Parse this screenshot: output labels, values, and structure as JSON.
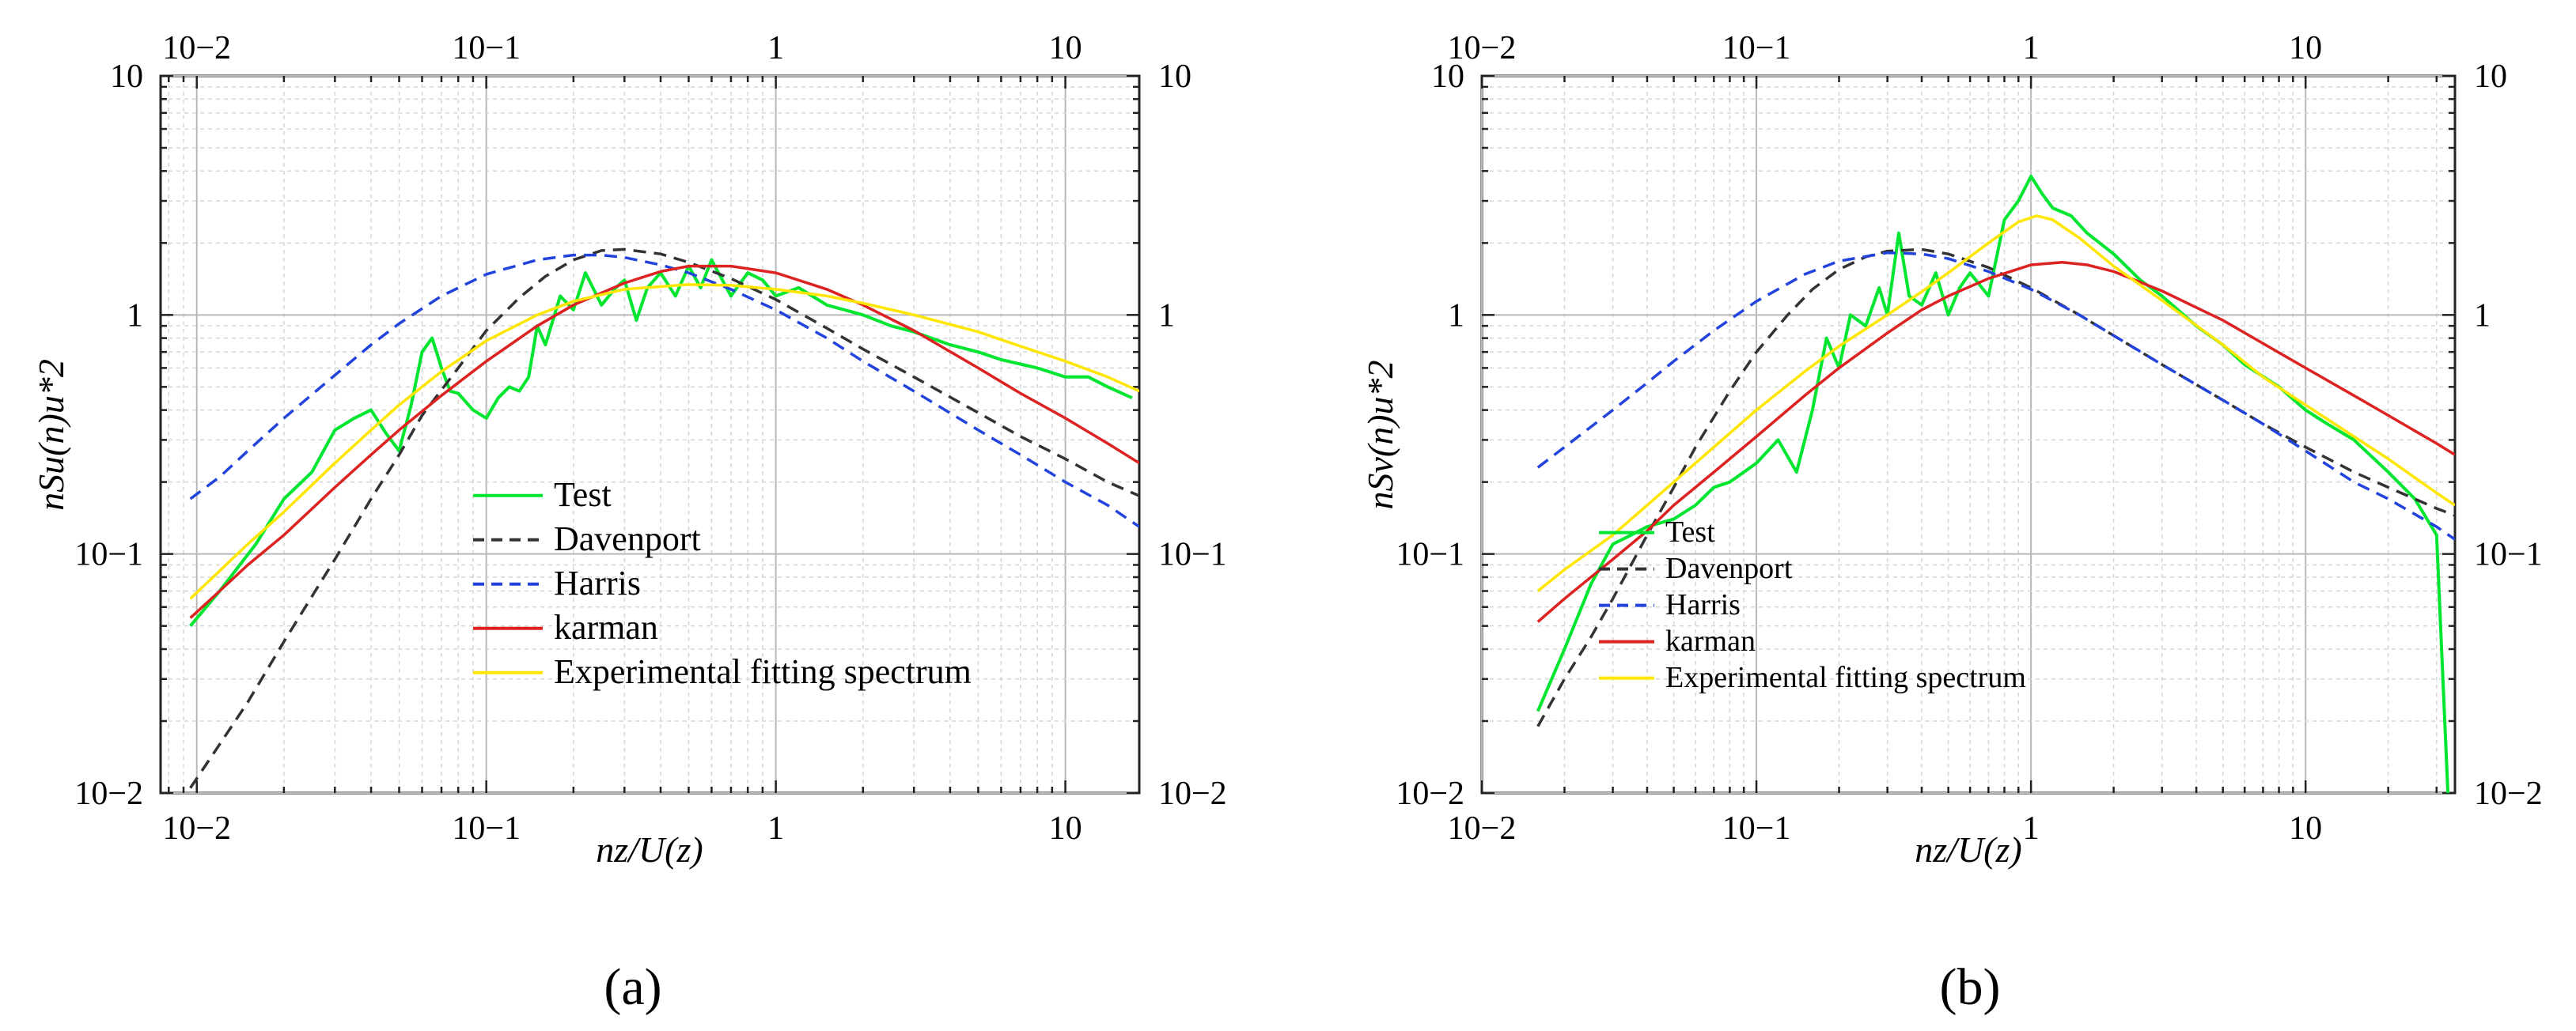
{
  "chart_data": [
    {
      "type": "line",
      "panel_label": "(a)",
      "xlabel": "nz/U(z)",
      "ylabel": "nSu(n)u*2",
      "xscale": "log",
      "yscale": "log",
      "xlim": [
        0.0075,
        18
      ],
      "ylim": [
        0.01,
        10
      ],
      "grid": true,
      "legend_position": "lower-right",
      "x_tick_labels": [
        "10−2",
        "10−1",
        "1",
        "10"
      ],
      "y_tick_labels": [
        "10−2",
        "10−1",
        "1",
        "10"
      ],
      "series": [
        {
          "name": "Test",
          "color": "#00e630",
          "style": "solid",
          "x": [
            0.0095,
            0.012,
            0.016,
            0.02,
            0.025,
            0.03,
            0.035,
            0.04,
            0.045,
            0.05,
            0.055,
            0.06,
            0.065,
            0.07,
            0.075,
            0.08,
            0.09,
            0.1,
            0.11,
            0.12,
            0.13,
            0.14,
            0.15,
            0.16,
            0.18,
            0.2,
            0.22,
            0.25,
            0.28,
            0.3,
            0.33,
            0.36,
            0.4,
            0.45,
            0.5,
            0.55,
            0.6,
            0.7,
            0.8,
            0.9,
            1.0,
            1.2,
            1.5,
            2.0,
            2.5,
            3.0,
            4.0,
            5.0,
            6.0,
            8.0,
            10.0,
            12.0,
            14.0,
            17.0
          ],
          "y": [
            0.05,
            0.07,
            0.11,
            0.17,
            0.22,
            0.33,
            0.37,
            0.4,
            0.32,
            0.27,
            0.42,
            0.7,
            0.8,
            0.6,
            0.48,
            0.47,
            0.4,
            0.37,
            0.45,
            0.5,
            0.48,
            0.55,
            0.9,
            0.75,
            1.2,
            1.05,
            1.5,
            1.1,
            1.3,
            1.4,
            0.95,
            1.3,
            1.5,
            1.2,
            1.6,
            1.3,
            1.7,
            1.2,
            1.5,
            1.4,
            1.2,
            1.3,
            1.1,
            1.0,
            0.9,
            0.85,
            0.75,
            0.7,
            0.65,
            0.6,
            0.55,
            0.55,
            0.5,
            0.45
          ]
        },
        {
          "name": "Davenport",
          "color": "#333333",
          "style": "dashed",
          "x": [
            0.0095,
            0.012,
            0.015,
            0.02,
            0.03,
            0.04,
            0.05,
            0.06,
            0.08,
            0.1,
            0.13,
            0.16,
            0.2,
            0.25,
            0.3,
            0.4,
            0.5,
            0.7,
            1.0,
            1.5,
            2.0,
            3.0,
            5.0,
            7.0,
            10.0,
            14.0,
            18.0
          ],
          "y": [
            0.0105,
            0.016,
            0.024,
            0.043,
            0.095,
            0.17,
            0.26,
            0.38,
            0.6,
            0.86,
            1.18,
            1.45,
            1.7,
            1.86,
            1.88,
            1.8,
            1.66,
            1.42,
            1.16,
            0.88,
            0.72,
            0.55,
            0.39,
            0.31,
            0.25,
            0.2,
            0.175
          ]
        },
        {
          "name": "Harris",
          "color": "#2244dd",
          "style": "dashed",
          "x": [
            0.0095,
            0.012,
            0.015,
            0.02,
            0.03,
            0.04,
            0.05,
            0.07,
            0.1,
            0.15,
            0.2,
            0.25,
            0.3,
            0.4,
            0.5,
            0.7,
            1.0,
            1.5,
            2.0,
            3.0,
            5.0,
            7.0,
            10.0,
            14.0,
            18.0
          ],
          "y": [
            0.17,
            0.21,
            0.27,
            0.37,
            0.56,
            0.75,
            0.92,
            1.2,
            1.48,
            1.7,
            1.78,
            1.78,
            1.74,
            1.62,
            1.5,
            1.28,
            1.05,
            0.8,
            0.64,
            0.48,
            0.33,
            0.26,
            0.2,
            0.16,
            0.13
          ]
        },
        {
          "name": "karman",
          "color": "#dd2222",
          "style": "solid",
          "x": [
            0.0095,
            0.012,
            0.015,
            0.02,
            0.03,
            0.04,
            0.05,
            0.07,
            0.1,
            0.15,
            0.2,
            0.3,
            0.4,
            0.5,
            0.7,
            1.0,
            1.5,
            2.0,
            3.0,
            5.0,
            7.0,
            10.0,
            14.0,
            18.0
          ],
          "y": [
            0.054,
            0.07,
            0.09,
            0.12,
            0.19,
            0.26,
            0.33,
            0.46,
            0.64,
            0.9,
            1.1,
            1.36,
            1.52,
            1.6,
            1.6,
            1.5,
            1.28,
            1.1,
            0.86,
            0.6,
            0.47,
            0.37,
            0.29,
            0.24
          ]
        },
        {
          "name": "Experimental fitting spectrum",
          "color": "#ffe600",
          "style": "solid",
          "x": [
            0.0095,
            0.012,
            0.015,
            0.02,
            0.03,
            0.04,
            0.05,
            0.07,
            0.1,
            0.15,
            0.2,
            0.3,
            0.5,
            0.7,
            1.0,
            1.5,
            2.0,
            3.0,
            5.0,
            7.0,
            10.0,
            14.0,
            18.0
          ],
          "y": [
            0.065,
            0.085,
            0.11,
            0.15,
            0.24,
            0.33,
            0.42,
            0.58,
            0.78,
            1.0,
            1.14,
            1.28,
            1.34,
            1.33,
            1.28,
            1.2,
            1.12,
            1.0,
            0.85,
            0.74,
            0.64,
            0.55,
            0.48
          ]
        }
      ]
    },
    {
      "type": "line",
      "panel_label": "(b)",
      "xlabel": "nz/U(z)",
      "ylabel": "nSv(n)u*2",
      "xscale": "log",
      "yscale": "log",
      "xlim": [
        0.01,
        35
      ],
      "ylim": [
        0.01,
        10
      ],
      "grid": true,
      "legend_position": "lower-left",
      "x_tick_labels": [
        "10−2",
        "10−1",
        "1",
        "10"
      ],
      "y_tick_labels": [
        "10−2",
        "10−1",
        "1",
        "10"
      ],
      "series": [
        {
          "name": "Test",
          "color": "#00e630",
          "style": "solid",
          "x": [
            0.016,
            0.02,
            0.025,
            0.03,
            0.035,
            0.04,
            0.05,
            0.06,
            0.07,
            0.08,
            0.1,
            0.12,
            0.14,
            0.16,
            0.18,
            0.2,
            0.22,
            0.25,
            0.28,
            0.3,
            0.33,
            0.36,
            0.4,
            0.45,
            0.5,
            0.55,
            0.6,
            0.7,
            0.8,
            0.9,
            1.0,
            1.1,
            1.2,
            1.4,
            1.6,
            2.0,
            2.5,
            3.0,
            4.0,
            5.0,
            6.0,
            8.0,
            10.0,
            12.0,
            15.0,
            20.0,
            25.0,
            30.0,
            33.0
          ],
          "y": [
            0.022,
            0.04,
            0.075,
            0.11,
            0.12,
            0.13,
            0.14,
            0.16,
            0.19,
            0.2,
            0.24,
            0.3,
            0.22,
            0.4,
            0.8,
            0.6,
            1.0,
            0.9,
            1.3,
            1.0,
            2.2,
            1.2,
            1.1,
            1.5,
            1.0,
            1.3,
            1.5,
            1.2,
            2.5,
            3.0,
            3.8,
            3.2,
            2.8,
            2.6,
            2.2,
            1.8,
            1.4,
            1.2,
            0.9,
            0.75,
            0.62,
            0.5,
            0.4,
            0.35,
            0.3,
            0.22,
            0.17,
            0.12,
            0.01
          ]
        },
        {
          "name": "Davenport",
          "color": "#333333",
          "style": "dashed",
          "x": [
            0.016,
            0.02,
            0.025,
            0.03,
            0.04,
            0.05,
            0.06,
            0.08,
            0.1,
            0.13,
            0.16,
            0.2,
            0.25,
            0.3,
            0.4,
            0.5,
            0.7,
            1.0,
            1.5,
            2.0,
            3.0,
            5.0,
            7.0,
            10.0,
            15.0,
            20.0,
            30.0,
            35.0
          ],
          "y": [
            0.019,
            0.03,
            0.045,
            0.065,
            0.12,
            0.19,
            0.28,
            0.48,
            0.7,
            1.0,
            1.28,
            1.55,
            1.75,
            1.85,
            1.88,
            1.8,
            1.58,
            1.3,
            1.0,
            0.82,
            0.62,
            0.44,
            0.35,
            0.28,
            0.22,
            0.19,
            0.155,
            0.145
          ]
        },
        {
          "name": "Harris",
          "color": "#2244dd",
          "style": "dashed",
          "x": [
            0.016,
            0.02,
            0.03,
            0.04,
            0.05,
            0.07,
            0.1,
            0.15,
            0.2,
            0.3,
            0.4,
            0.5,
            0.7,
            1.0,
            1.5,
            2.0,
            3.0,
            5.0,
            7.0,
            10.0,
            15.0,
            20.0,
            30.0,
            35.0
          ],
          "y": [
            0.23,
            0.28,
            0.4,
            0.52,
            0.64,
            0.86,
            1.14,
            1.48,
            1.68,
            1.82,
            1.8,
            1.72,
            1.52,
            1.28,
            1.0,
            0.82,
            0.62,
            0.44,
            0.35,
            0.27,
            0.2,
            0.17,
            0.13,
            0.115
          ]
        },
        {
          "name": "karman",
          "color": "#dd2222",
          "style": "solid",
          "x": [
            0.016,
            0.02,
            0.03,
            0.04,
            0.05,
            0.07,
            0.1,
            0.15,
            0.2,
            0.3,
            0.4,
            0.5,
            0.7,
            1.0,
            1.3,
            1.6,
            2.0,
            3.0,
            5.0,
            7.0,
            10.0,
            15.0,
            20.0,
            30.0,
            35.0
          ],
          "y": [
            0.052,
            0.065,
            0.095,
            0.125,
            0.16,
            0.22,
            0.31,
            0.46,
            0.6,
            0.84,
            1.05,
            1.2,
            1.42,
            1.62,
            1.66,
            1.62,
            1.52,
            1.26,
            0.95,
            0.76,
            0.6,
            0.46,
            0.38,
            0.29,
            0.26
          ]
        },
        {
          "name": "Experimental fitting spectrum",
          "color": "#ffe600",
          "style": "solid",
          "x": [
            0.016,
            0.02,
            0.03,
            0.04,
            0.05,
            0.07,
            0.1,
            0.15,
            0.2,
            0.3,
            0.4,
            0.5,
            0.7,
            0.9,
            1.05,
            1.2,
            1.5,
            2.0,
            3.0,
            5.0,
            7.0,
            10.0,
            15.0,
            20.0,
            30.0,
            35.0
          ],
          "y": [
            0.07,
            0.086,
            0.12,
            0.16,
            0.2,
            0.28,
            0.4,
            0.58,
            0.74,
            1.0,
            1.25,
            1.5,
            2.0,
            2.45,
            2.6,
            2.5,
            2.1,
            1.6,
            1.15,
            0.75,
            0.55,
            0.42,
            0.31,
            0.25,
            0.18,
            0.16
          ]
        }
      ]
    }
  ]
}
